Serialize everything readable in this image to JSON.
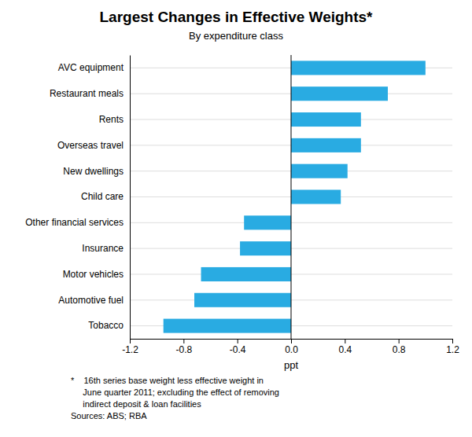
{
  "chart_data": {
    "type": "bar",
    "orientation": "horizontal",
    "title": "Largest Changes in Effective Weights*",
    "subtitle": "By expenditure class",
    "categories": [
      "AVC equipment",
      "Restaurant meals",
      "Rents",
      "Overseas travel",
      "New dwellings",
      "Child care",
      "Other financial services",
      "Insurance",
      "Motor vehicles",
      "Automotive fuel",
      "Tobacco"
    ],
    "values": [
      1.0,
      0.72,
      0.52,
      0.52,
      0.42,
      0.37,
      -0.35,
      -0.38,
      -0.67,
      -0.72,
      -0.95
    ],
    "color": "#29ABE2",
    "xlabel": "ppt",
    "xlim": [
      -1.2,
      1.2
    ],
    "xticks": [
      -1.2,
      -0.8,
      -0.4,
      {
        "value": 0.0,
        "label": "0.0"
      },
      0.4,
      0.8,
      1.2
    ],
    "grid": true,
    "footnote": "*    16th series base weight less effective weight in\n     June quarter 2011; excluding the effect of removing\n     indirect deposit & loan facilities\nSources: ABS; RBA"
  }
}
